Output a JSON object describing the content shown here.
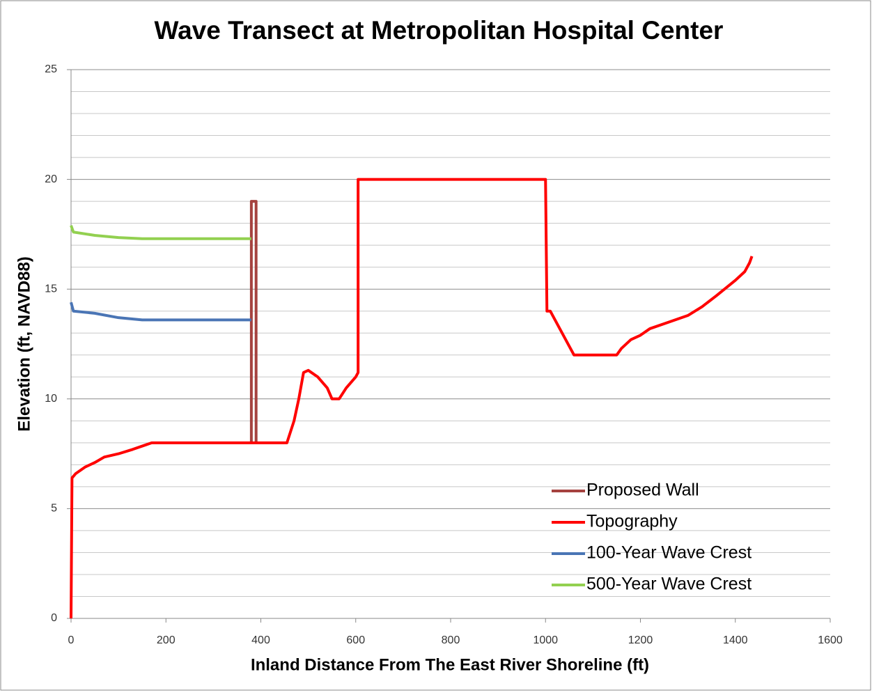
{
  "chart_data": {
    "type": "line",
    "title": "Wave Transect at Metropolitan Hospital Center",
    "xlabel": "Inland Distance From The East River Shoreline (ft)",
    "ylabel": "Elevation (ft, NAVD88)",
    "xlim": [
      0,
      1600
    ],
    "xticks": [
      0,
      200,
      400,
      600,
      800,
      1000,
      1200,
      1400,
      1600
    ],
    "ylim": [
      0,
      25
    ],
    "yticks": [
      0,
      5,
      10,
      15,
      20,
      25
    ],
    "yminor_ticks": [
      1,
      2,
      3,
      4,
      6,
      7,
      8,
      9,
      11,
      12,
      13,
      14,
      16,
      17,
      18,
      19,
      21,
      22,
      23,
      24
    ],
    "grid": true,
    "legend": "lower right",
    "series": [
      {
        "name": "Proposed Wall",
        "color": "#a5423f",
        "x": [
          380,
          380,
          390,
          390
        ],
        "values": [
          8,
          19,
          19,
          8
        ]
      },
      {
        "name": "Topography",
        "color": "#ff0000",
        "x": [
          0,
          2,
          10,
          30,
          50,
          70,
          100,
          130,
          150,
          170,
          455,
          470,
          480,
          490,
          500,
          520,
          540,
          550,
          565,
          580,
          600,
          605,
          605,
          1000,
          1003,
          1010,
          1030,
          1050,
          1060,
          1150,
          1160,
          1180,
          1200,
          1220,
          1260,
          1300,
          1330,
          1360,
          1400,
          1420,
          1430,
          1435
        ],
        "values": [
          0,
          6.4,
          6.6,
          6.9,
          7.1,
          7.35,
          7.5,
          7.7,
          7.85,
          8,
          8,
          9,
          10,
          11.2,
          11.3,
          11,
          10.5,
          10,
          10,
          10.5,
          11,
          11.2,
          20,
          20,
          14,
          14,
          13.2,
          12.4,
          12,
          12,
          12.3,
          12.7,
          12.9,
          13.2,
          13.5,
          13.8,
          14.2,
          14.7,
          15.4,
          15.8,
          16.2,
          16.5
        ]
      },
      {
        "name": "100-Year Wave Crest",
        "color": "#4a75b5",
        "x": [
          0,
          5,
          50,
          100,
          150,
          380
        ],
        "values": [
          14.4,
          14,
          13.9,
          13.7,
          13.6,
          13.6
        ]
      },
      {
        "name": "500-Year Wave Crest",
        "color": "#92d050",
        "x": [
          0,
          5,
          50,
          100,
          150,
          380
        ],
        "values": [
          17.9,
          17.6,
          17.45,
          17.35,
          17.3,
          17.3
        ]
      }
    ]
  }
}
